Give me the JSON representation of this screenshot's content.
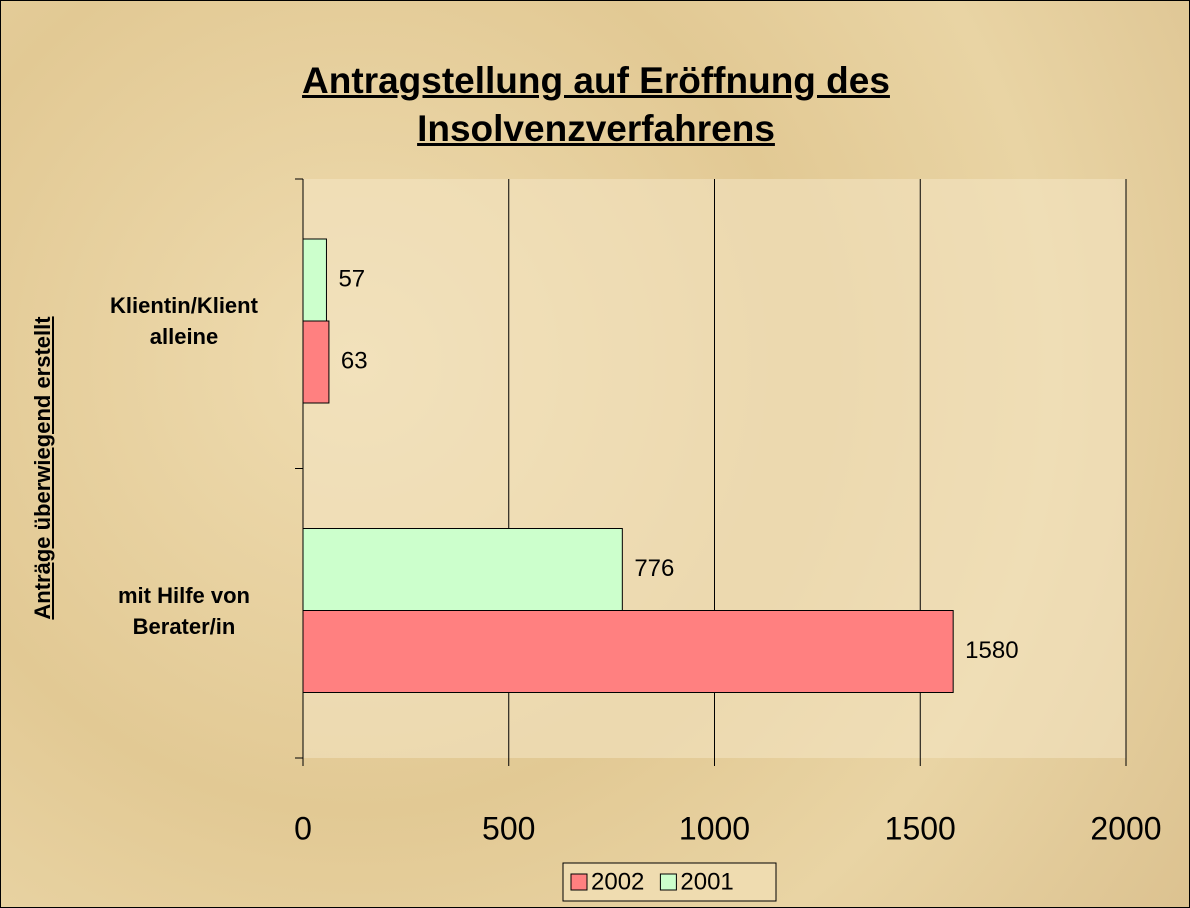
{
  "chart_data": {
    "type": "hbar",
    "title": "Antragstellung auf Eröffnung des Insolvenzverfahrens",
    "y_label": "Anträge überwiegend erstellt",
    "categories": [
      "Klientin/Klient alleine",
      "mit Hilfe von Berater/in"
    ],
    "series": [
      {
        "name": "2002",
        "color": "#ff8080",
        "values": [
          63,
          1580
        ]
      },
      {
        "name": "2001",
        "color": "#ccffcc",
        "values": [
          57,
          776
        ]
      }
    ],
    "xlim": [
      0,
      2000
    ],
    "xticks": [
      0,
      500,
      1000,
      1500,
      2000
    ],
    "grid": true,
    "legend": "bottom"
  }
}
